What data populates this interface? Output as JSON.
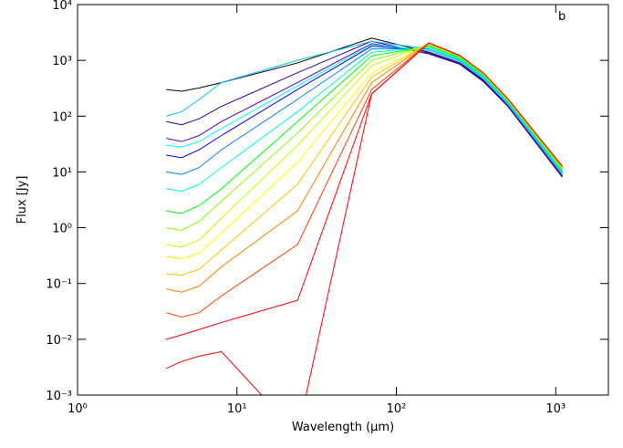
{
  "chart_data": {
    "type": "line",
    "log_x": true,
    "log_y": true,
    "grid": false,
    "y_label": "Flux [Jy]",
    "x_label": "Wavelength (μm)",
    "annotation": "b",
    "xlim": [
      1,
      2140
    ],
    "ylim": [
      0.001,
      10000
    ],
    "xticks": [
      {
        "value": 1,
        "label": "10⁰"
      },
      {
        "value": 10,
        "label": "10¹"
      },
      {
        "value": 100,
        "label": "10²"
      },
      {
        "value": 1000,
        "label": "10³"
      }
    ],
    "yticks": [
      {
        "value": 0.001,
        "label": "10⁻³"
      },
      {
        "value": 0.01,
        "label": "10⁻²"
      },
      {
        "value": 0.1,
        "label": "10⁻¹"
      },
      {
        "value": 1,
        "label": "10⁰"
      },
      {
        "value": 10,
        "label": "10¹"
      },
      {
        "value": 100,
        "label": "10²"
      },
      {
        "value": 1000,
        "label": "10³"
      },
      {
        "value": 10000,
        "label": "10⁴"
      }
    ],
    "x": [
      3.6,
      4.5,
      5.8,
      8,
      24,
      70,
      160,
      250,
      350,
      500,
      1100
    ],
    "series": [
      {
        "color": "#000000",
        "values": [
          300,
          280,
          320,
          400,
          900,
          2500,
          1400,
          900,
          450,
          160,
          8.5
        ]
      },
      {
        "color": "#3000a0",
        "values": [
          80,
          70,
          90,
          150,
          600,
          2200,
          1300,
          850,
          420,
          150,
          8
        ]
      },
      {
        "color": "#5000c0",
        "values": [
          40,
          35,
          45,
          80,
          400,
          2000,
          1350,
          870,
          430,
          155,
          8.3
        ]
      },
      {
        "color": "#0000ff",
        "values": [
          20,
          18,
          25,
          45,
          300,
          1800,
          1500,
          950,
          470,
          165,
          9
        ]
      },
      {
        "color": "#00ffff",
        "values": [
          30,
          28,
          35,
          60,
          350,
          1900,
          1500,
          950,
          470,
          165,
          9
        ]
      },
      {
        "color": "#0080ff",
        "values": [
          10,
          9,
          12,
          25,
          200,
          1600,
          1600,
          1000,
          500,
          175,
          9.5
        ]
      },
      {
        "color": "#00c0ff",
        "values": [
          100,
          120,
          200,
          400,
          1000,
          2200,
          1600,
          1000,
          500,
          170,
          9.3
        ]
      },
      {
        "color": "#00ffc0",
        "values": [
          5,
          4.5,
          6,
          12,
          120,
          1400,
          1700,
          1050,
          520,
          180,
          10
        ]
      },
      {
        "color": "#00ff00",
        "values": [
          2,
          1.8,
          2.5,
          5,
          80,
          1200,
          1800,
          1100,
          540,
          185,
          10.5
        ]
      },
      {
        "color": "#80ff00",
        "values": [
          1,
          0.9,
          1.3,
          3,
          50,
          1000,
          1900,
          1150,
          560,
          190,
          11
        ]
      },
      {
        "color": "#c0ff00",
        "values": [
          0.5,
          0.45,
          0.6,
          1.5,
          30,
          800,
          2000,
          1200,
          580,
          195,
          11.5
        ]
      },
      {
        "color": "#ffff00",
        "values": [
          0.3,
          0.28,
          0.35,
          0.8,
          15,
          600,
          2000,
          1200,
          590,
          200,
          12
        ]
      },
      {
        "color": "#ffc000",
        "values": [
          0.15,
          0.14,
          0.18,
          0.4,
          6,
          500,
          2000,
          1200,
          590,
          200,
          12
        ]
      },
      {
        "color": "#ff8000",
        "values": [
          0.08,
          0.07,
          0.09,
          0.2,
          2,
          400,
          2050,
          1220,
          600,
          205,
          12.5
        ]
      },
      {
        "color": "#ff4000",
        "values": [
          0.03,
          0.025,
          0.03,
          0.06,
          0.5,
          300,
          2050,
          1220,
          600,
          205,
          12.5
        ]
      },
      {
        "color": "#ff0000",
        "values": [
          0.01,
          0.012,
          0.015,
          0.02,
          0.05,
          250,
          2050,
          1220,
          600,
          205,
          12.5
        ]
      },
      {
        "color": "#ff0000",
        "values": [
          0.003,
          0.004,
          0.005,
          0.006,
          0.0002,
          250,
          2050,
          1220,
          600,
          205,
          12.5
        ]
      }
    ]
  }
}
